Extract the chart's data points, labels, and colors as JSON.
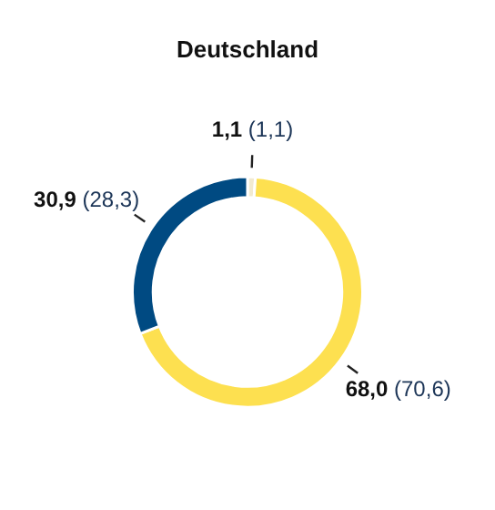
{
  "chart_data": {
    "type": "donut",
    "title": "Deutschland",
    "categories": [
      null,
      null,
      null
    ],
    "values": [
      1.1,
      68.0,
      30.9
    ],
    "colors": [
      "#f2ead0",
      "#fde050",
      "#004a82"
    ],
    "value_labels": [
      "1,1 (1,1)",
      "68,0 (70,6)",
      "30,9 (28,3)"
    ],
    "legend": false
  }
}
